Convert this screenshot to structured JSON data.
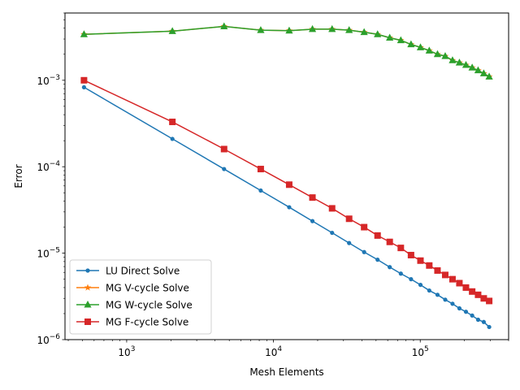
{
  "chart_data": {
    "type": "line",
    "title": "",
    "xlabel": "Mesh Elements",
    "ylabel": "Error",
    "xscale": "log",
    "yscale": "log",
    "xlim": [
      380,
      400000
    ],
    "ylim": [
      1e-06,
      0.006
    ],
    "grid": false,
    "legend_position": "lower-left",
    "x_ticks": [
      {
        "value": 1000,
        "base": "10",
        "exp": "3"
      },
      {
        "value": 10000,
        "base": "10",
        "exp": "4"
      },
      {
        "value": 100000,
        "base": "10",
        "exp": "5"
      }
    ],
    "y_ticks": [
      {
        "value": 1e-06,
        "base": "10",
        "exp": "−6"
      },
      {
        "value": 1e-05,
        "base": "10",
        "exp": "−5"
      },
      {
        "value": 0.0001,
        "base": "10",
        "exp": "−4"
      },
      {
        "value": 0.001,
        "base": "10",
        "exp": "−3"
      }
    ],
    "x": [
      512,
      2048,
      4608,
      8192,
      12800,
      18432,
      25088,
      32768,
      41472,
      51200,
      61952,
      73728,
      86528,
      100352,
      115200,
      131072,
      147968,
      165888,
      184832,
      204800,
      225792,
      247808,
      270848,
      294912
    ],
    "series": [
      {
        "name": "LU Direct Solve",
        "color": "#1f77b4",
        "marker": "circle",
        "values": [
          0.00083,
          0.00021,
          9.4e-05,
          5.3e-05,
          3.4e-05,
          2.35e-05,
          1.72e-05,
          1.31e-05,
          1.03e-05,
          8.4e-06,
          6.9e-06,
          5.8e-06,
          5e-06,
          4.3e-06,
          3.7e-06,
          3.3e-06,
          2.9e-06,
          2.6e-06,
          2.3e-06,
          2.1e-06,
          1.9e-06,
          1.7e-06,
          1.6e-06,
          1.4e-06
        ]
      },
      {
        "name": "MG V-cycle Solve",
        "color": "#ff7f0e",
        "marker": "star",
        "values": [
          0.0034,
          0.0037,
          0.0042,
          0.0038,
          0.00375,
          0.0039,
          0.0039,
          0.0038,
          0.0036,
          0.0034,
          0.0031,
          0.0029,
          0.0026,
          0.0024,
          0.0022,
          0.002,
          0.0019,
          0.0017,
          0.0016,
          0.0015,
          0.0014,
          0.0013,
          0.0012,
          0.0011
        ]
      },
      {
        "name": "MG W-cycle Solve",
        "color": "#2ca02c",
        "marker": "triangle",
        "values": [
          0.0034,
          0.0037,
          0.0042,
          0.0038,
          0.00375,
          0.0039,
          0.0039,
          0.0038,
          0.0036,
          0.0034,
          0.0031,
          0.0029,
          0.0026,
          0.0024,
          0.0022,
          0.002,
          0.0019,
          0.0017,
          0.0016,
          0.0015,
          0.0014,
          0.0013,
          0.0012,
          0.0011
        ]
      },
      {
        "name": "MG F-cycle Solve",
        "color": "#d62728",
        "marker": "square",
        "values": [
          0.001,
          0.00033,
          0.00016,
          9.4e-05,
          6.2e-05,
          4.4e-05,
          3.3e-05,
          2.5e-05,
          2e-05,
          1.6e-05,
          1.35e-05,
          1.15e-05,
          9.5e-06,
          8.2e-06,
          7.2e-06,
          6.3e-06,
          5.6e-06,
          5e-06,
          4.5e-06,
          4e-06,
          3.6e-06,
          3.3e-06,
          3e-06,
          2.8e-06
        ]
      }
    ]
  }
}
